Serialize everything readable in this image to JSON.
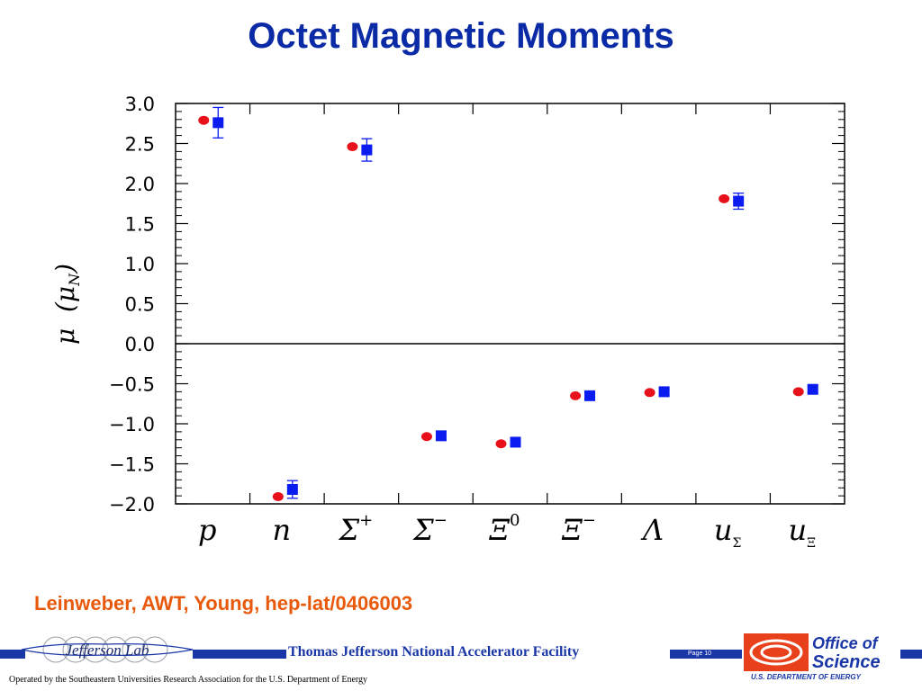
{
  "slide": {
    "title": "Octet Magnetic Moments",
    "citation": "Leinweber, AWT, Young,  hep-lat/0406003"
  },
  "footer": {
    "facility": "Thomas Jefferson National Accelerator Facility",
    "page_label": "Page 10",
    "operated_by": "Operated by the Southeastern Universities Research Association for the U.S. Department of  Energy",
    "jlab_logo_text": "Jefferson Lab",
    "doe_logo_text_1": "Office of",
    "doe_logo_text_2": "Science",
    "doe_logo_text_3": "U.S. DEPARTMENT OF ENERGY",
    "bar_color": "#1a37a8"
  },
  "chart_data": {
    "type": "scatter",
    "ylim": [
      -2.0,
      3.0
    ],
    "yticks": [
      "3.0",
      "2.5",
      "2.0",
      "1.5",
      "1.0",
      "0.5",
      "0.0",
      "−0.5",
      "−1.0",
      "−1.5",
      "−2.0"
    ],
    "ytick_values": [
      3.0,
      2.5,
      2.0,
      1.5,
      1.0,
      0.5,
      0.0,
      -0.5,
      -1.0,
      -1.5,
      -2.0
    ],
    "ylabel_main": "μ",
    "ylabel_paren_open": "(",
    "ylabel_mu": "μ",
    "ylabel_sub": "N",
    "ylabel_paren_close": ")",
    "zero_line": true,
    "categories": [
      {
        "main": "p",
        "sup": "",
        "sub": ""
      },
      {
        "main": "n",
        "sup": "",
        "sub": ""
      },
      {
        "main": "Σ",
        "sup": "+",
        "sub": ""
      },
      {
        "main": "Σ",
        "sup": "−",
        "sub": ""
      },
      {
        "main": "Ξ",
        "sup": "0",
        "sub": ""
      },
      {
        "main": "Ξ",
        "sup": "−",
        "sub": ""
      },
      {
        "main": "Λ",
        "sup": "",
        "sub": ""
      },
      {
        "main": "u",
        "sup": "",
        "sub": "Σ"
      },
      {
        "main": "u",
        "sup": "",
        "sub": "Ξ"
      }
    ],
    "series": [
      {
        "marker": "circle",
        "color": "#e8101a",
        "values": [
          2.79,
          -1.91,
          2.46,
          -1.16,
          -1.25,
          -0.65,
          -0.61,
          1.81,
          -0.6
        ]
      },
      {
        "marker": "square",
        "color": "#0a1cf0",
        "values": [
          2.76,
          -1.82,
          2.42,
          -1.15,
          -1.23,
          -0.65,
          -0.6,
          1.78,
          -0.57
        ],
        "errors": [
          0.19,
          0.11,
          0.14,
          0.05,
          0.05,
          0.04,
          0.04,
          0.1,
          0.04
        ]
      }
    ]
  }
}
